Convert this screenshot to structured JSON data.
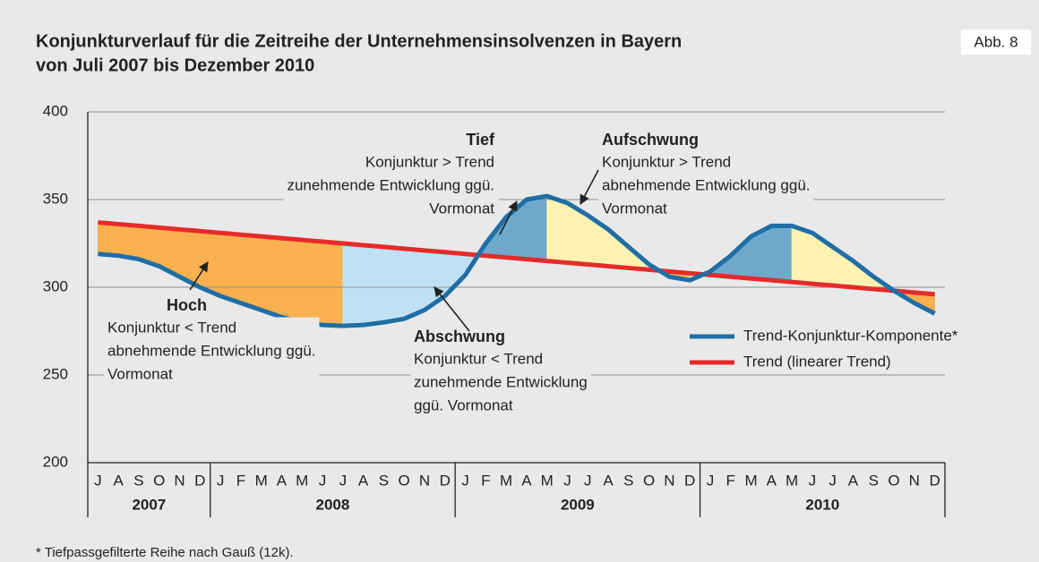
{
  "chart_data": {
    "type": "line",
    "title": [
      "Konjunkturverlauf für die Zeitreihe der Unternehmensinsolvenzen in Bayern",
      "von Juli 2007 bis Dezember 2010"
    ],
    "figure_label": "Abb. 8",
    "footnote": "* Tiefpassgefilterte Reihe nach Gauß (12k).",
    "categories": [
      "J",
      "A",
      "S",
      "O",
      "N",
      "D",
      "J",
      "F",
      "M",
      "A",
      "M",
      "J",
      "J",
      "A",
      "S",
      "O",
      "N",
      "D",
      "J",
      "F",
      "M",
      "A",
      "M",
      "J",
      "J",
      "A",
      "S",
      "O",
      "N",
      "D",
      "J",
      "F",
      "M",
      "A",
      "M",
      "J",
      "J",
      "A",
      "S",
      "O",
      "N",
      "D"
    ],
    "years": [
      "2007",
      "2008",
      "2009",
      "2010"
    ],
    "series": [
      {
        "name": "Trend-Konjunktur-Komponente*",
        "color": "#1f6ea5",
        "values": [
          319,
          318,
          316,
          312,
          306,
          300,
          295,
          291,
          287,
          283,
          280,
          278.5,
          278,
          278.5,
          280,
          282,
          287,
          295,
          307,
          325,
          340,
          350,
          352,
          348,
          341,
          333,
          323,
          313,
          306,
          304,
          309,
          318,
          329,
          335,
          335,
          331,
          323,
          315,
          306,
          298,
          291,
          285
        ]
      },
      {
        "name": "Trend (linearer Trend)",
        "color": "#e62a2a",
        "values": [
          337,
          336,
          335,
          334,
          333,
          332,
          331,
          330,
          329,
          328,
          327,
          326,
          325,
          324,
          323,
          322,
          321,
          320,
          319,
          318,
          317,
          316,
          315,
          314,
          313,
          312,
          311,
          310,
          309,
          308,
          307,
          306,
          305,
          304,
          303,
          302,
          301,
          300,
          299,
          298,
          297,
          296
        ]
      }
    ],
    "region_colors": {
      "below_falling": "#f8b14e",
      "below_rising": "#c0e1f3",
      "above_rising": "#6ea9cc",
      "above_falling": "#fdf3b1"
    },
    "annotations": [
      {
        "title": "Hoch",
        "lines": [
          "Konjunktur < Trend",
          "abnehmende Entwicklung ggü.",
          "Vormonat"
        ]
      },
      {
        "title": "Abschwung",
        "lines": [
          "Konjunktur < Trend",
          "zunehmende Entwicklung",
          "ggü. Vormonat"
        ]
      },
      {
        "title": "Tief",
        "lines": [
          "Konjunktur > Trend",
          "zunehmende Entwicklung ggü.",
          "Vormonat"
        ]
      },
      {
        "title": "Aufschwung",
        "lines": [
          "Konjunktur > Trend",
          "abnehmende Entwicklung ggü.",
          "Vormonat"
        ]
      }
    ],
    "ylim": [
      200,
      400
    ],
    "yticks": [
      200,
      250,
      300,
      350,
      400
    ],
    "grid": true
  }
}
